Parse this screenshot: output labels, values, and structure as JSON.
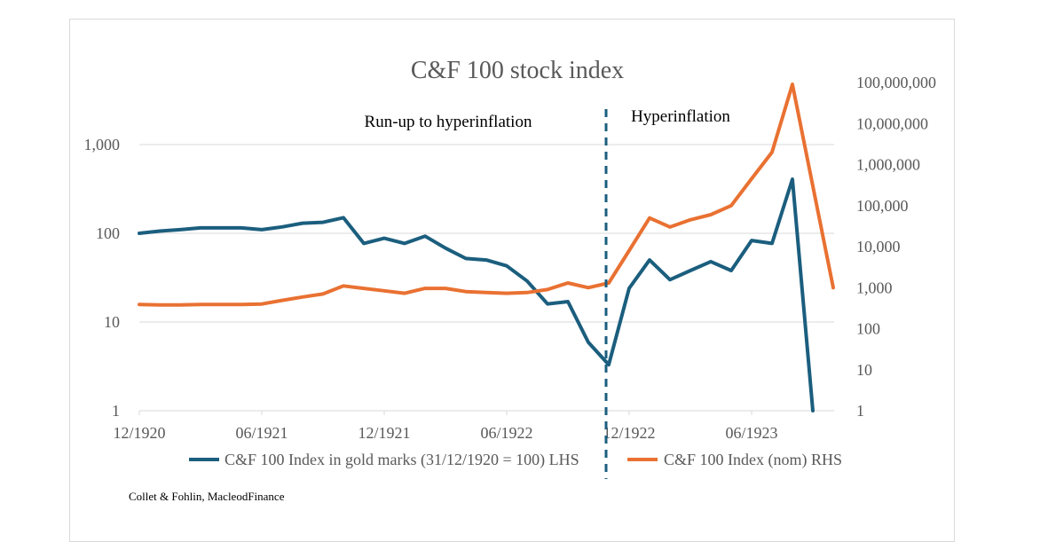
{
  "chart_data": {
    "type": "line",
    "title": "C&F 100 stock index",
    "xlabel": "",
    "ylabel_left": "",
    "ylabel_right": "",
    "x_tick_labels": [
      "12/1920",
      "06/1921",
      "12/1921",
      "06/1922",
      "12/1922",
      "06/1923"
    ],
    "left_axis": {
      "scale": "log",
      "ylim": [
        1,
        10000
      ],
      "tick_labels": [
        "1",
        "10",
        "100",
        "1,000"
      ],
      "tick_values": [
        1,
        10,
        100,
        1000
      ]
    },
    "right_axis": {
      "scale": "log",
      "ylim": [
        1,
        100000000
      ],
      "tick_labels": [
        "1",
        "10",
        "100",
        "1,000",
        "10,000",
        "100,000",
        "1,000,000",
        "10,000,000",
        "100,000,000"
      ],
      "tick_values": [
        1,
        10,
        100,
        1000,
        10000,
        100000,
        1000000,
        10000000,
        100000000
      ]
    },
    "grid": true,
    "legend_position": "bottom",
    "months": [
      "12/1920",
      "01/1921",
      "02/1921",
      "03/1921",
      "04/1921",
      "05/1921",
      "06/1921",
      "07/1921",
      "08/1921",
      "09/1921",
      "10/1921",
      "11/1921",
      "12/1921",
      "01/1922",
      "02/1922",
      "03/1922",
      "04/1922",
      "05/1922",
      "06/1922",
      "07/1922",
      "08/1922",
      "09/1922",
      "10/1922",
      "11/1922",
      "12/1922",
      "01/1923",
      "02/1923",
      "03/1923",
      "04/1923",
      "05/1923",
      "06/1923",
      "07/1923",
      "08/1923",
      "09/1923",
      "10/1923"
    ],
    "series": [
      {
        "name": "C&F 100 Index in gold marks (31/12/1920 = 100) LHS",
        "axis": "left",
        "color": "#1b5e7e",
        "values": [
          100,
          106,
          110,
          115,
          115,
          115,
          110,
          118,
          130,
          133,
          150,
          77,
          88,
          77,
          93,
          68,
          52,
          50,
          43,
          29,
          16,
          17,
          5.9,
          3.3,
          24,
          50,
          30,
          38,
          48,
          38,
          83,
          77,
          407,
          1,
          null
        ]
      },
      {
        "name": "C&F 100 Index (nom) RHS",
        "axis": "right",
        "color": "#e97132",
        "values": [
          390,
          380,
          380,
          390,
          390,
          390,
          400,
          490,
          590,
          700,
          1100,
          960,
          840,
          730,
          960,
          960,
          800,
          760,
          730,
          760,
          900,
          1300,
          1000,
          1300,
          8000,
          50000,
          30000,
          45000,
          60000,
          100000,
          450000,
          2000000,
          90000000,
          null,
          1000
        ]
      }
    ],
    "annotations": [
      {
        "text": "Run-up to hyperinflation"
      },
      {
        "text": "Hyperinflation"
      }
    ],
    "divider": {
      "style": "dashed",
      "at": "between 10/1922 and 11/1922",
      "color": "#1b5e7e"
    },
    "source": "Collet & Fohlin, MacleodFinance"
  }
}
